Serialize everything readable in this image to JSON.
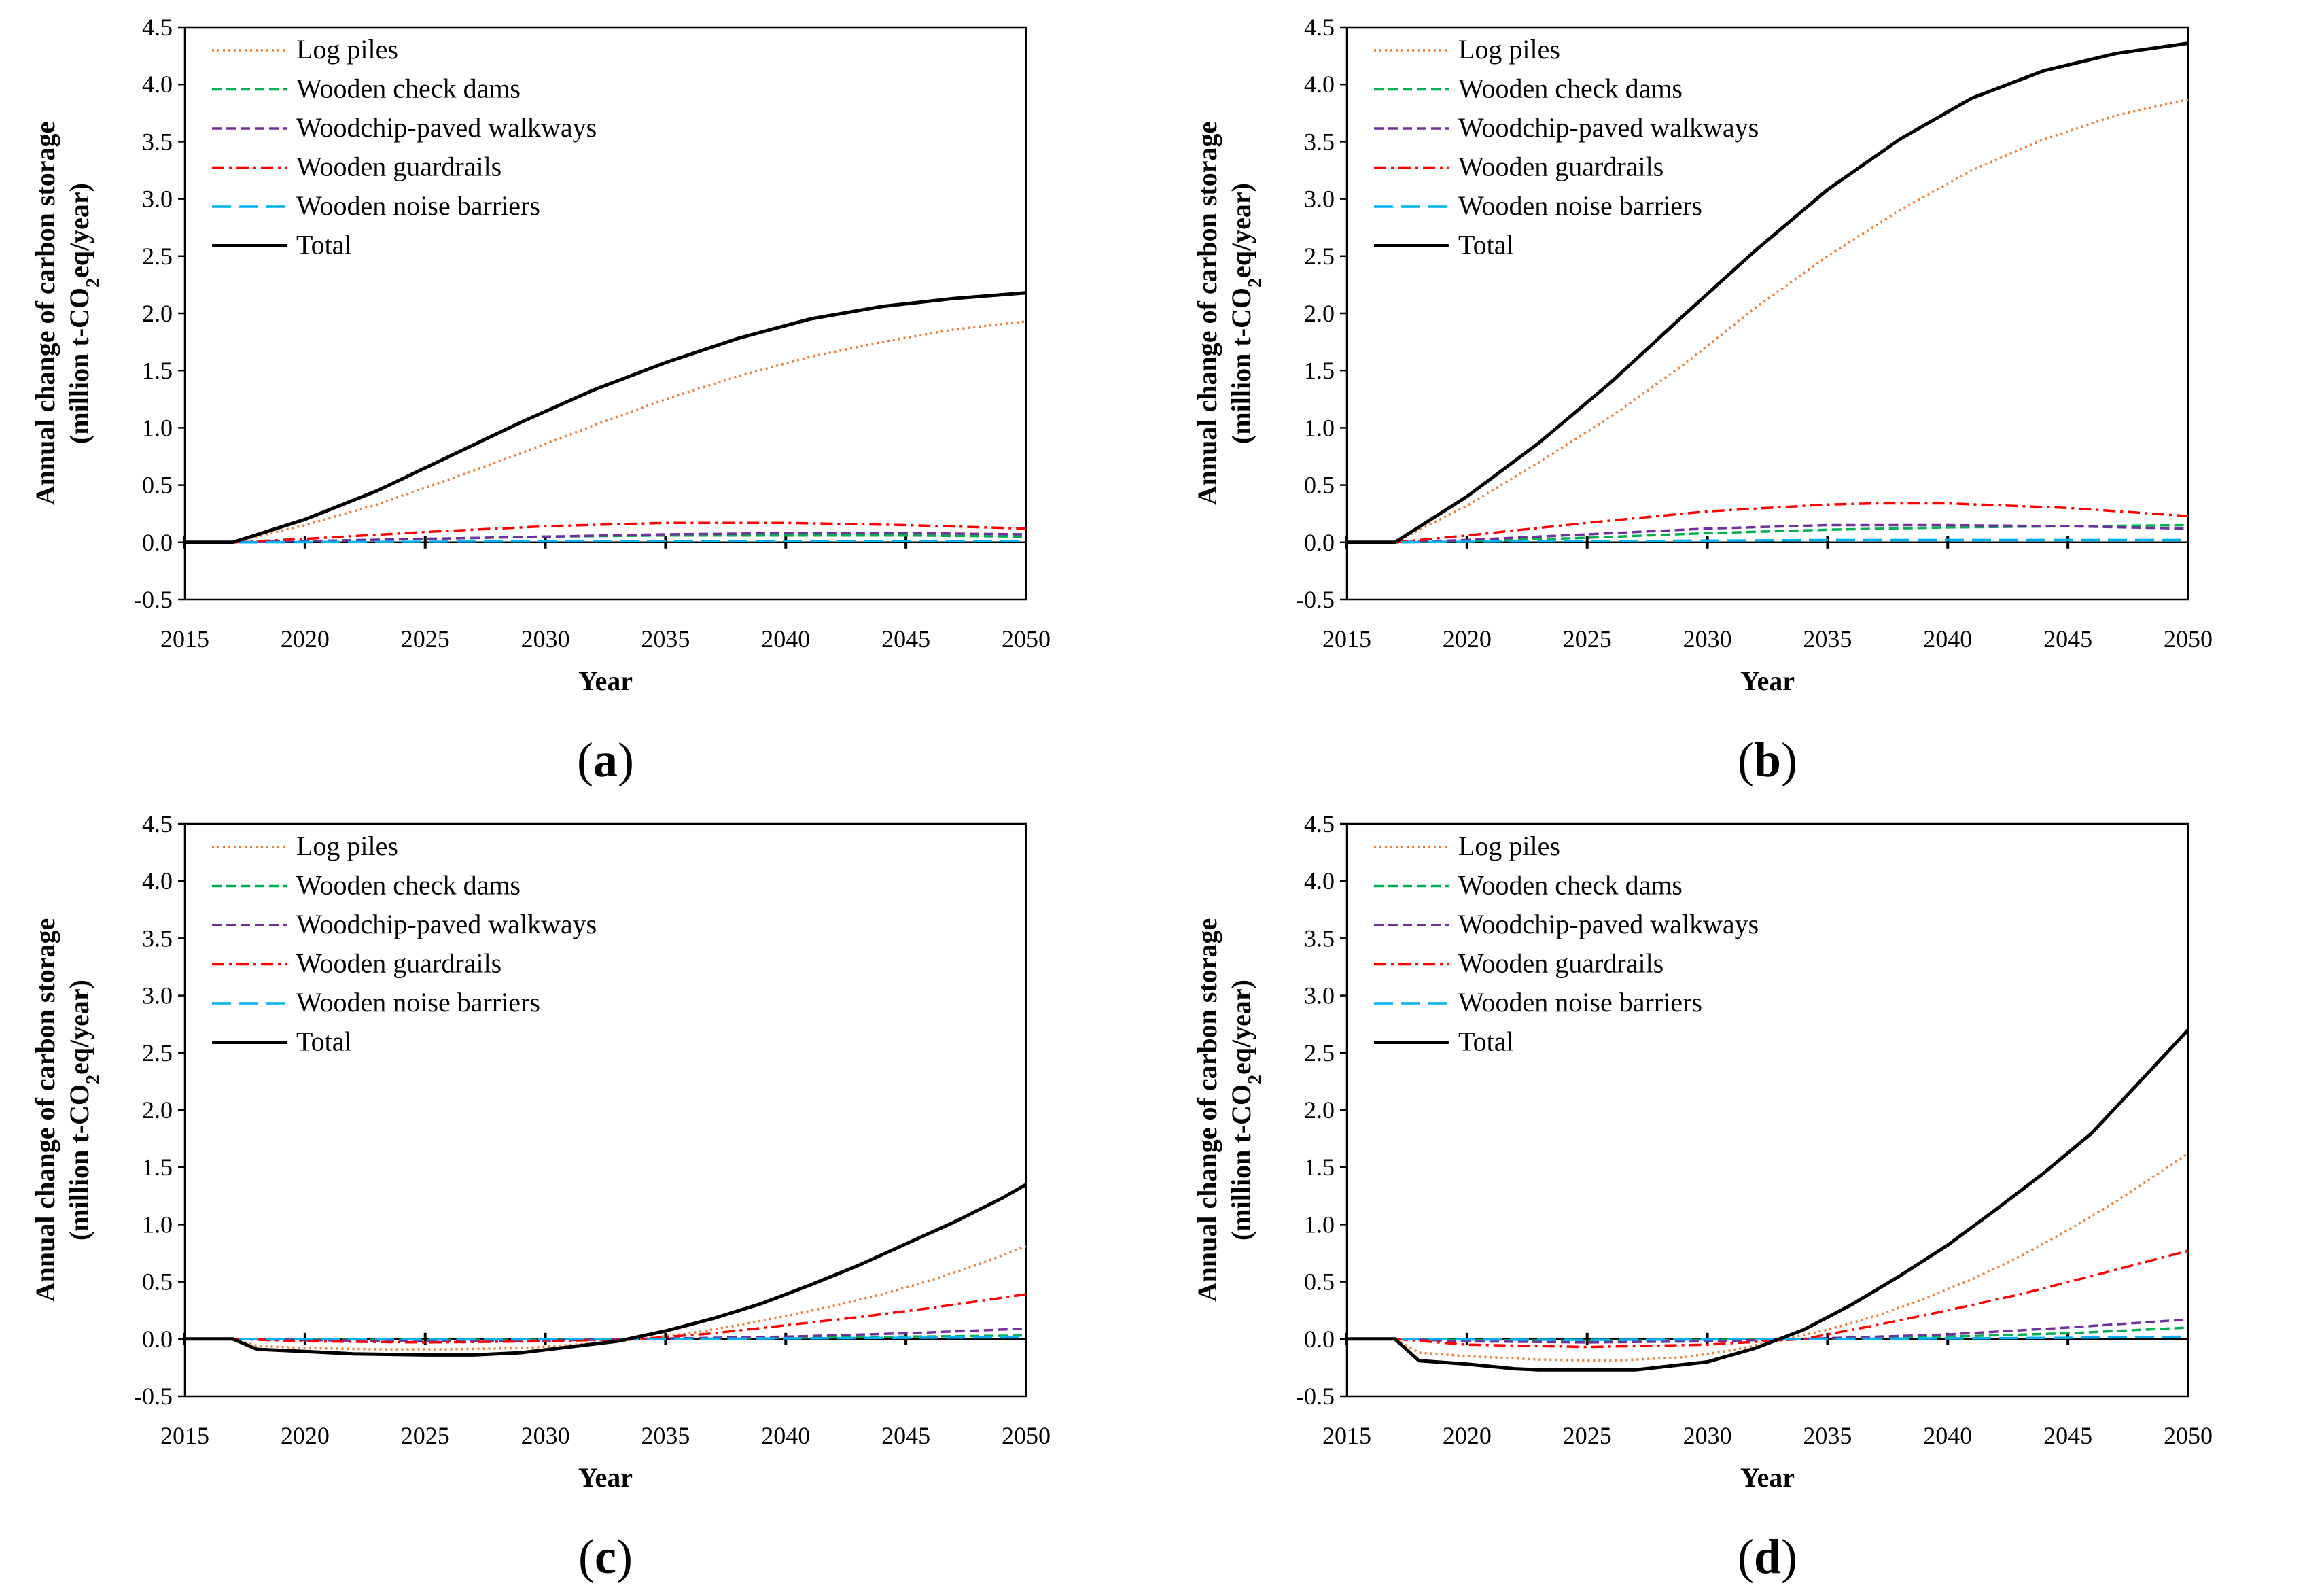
{
  "figure": {
    "description_labels": [
      "(a)",
      "(b)",
      "(c)",
      "(d)"
    ]
  },
  "chart_data": [
    {
      "type": "line",
      "label": "a",
      "xlabel": "Year",
      "ylabel_line1": "Annual change of carbon storage",
      "ylabel_line2_pre": "(million t-CO",
      "ylabel_line2_sub": "2",
      "ylabel_line2_post": "eq/year)",
      "xlim": [
        2015,
        2050
      ],
      "ylim": [
        -0.5,
        4.5
      ],
      "x_ticks": [
        2015,
        2020,
        2025,
        2030,
        2035,
        2040,
        2045,
        2050
      ],
      "y_ticks": [
        "-0.5",
        "0.0",
        "0.5",
        "1.0",
        "1.5",
        "2.0",
        "2.5",
        "3.0",
        "3.5",
        "4.0",
        "4.5"
      ],
      "legend": "top-left",
      "series": [
        {
          "name": "Log piles",
          "color": "#ED7D31",
          "style": "dotted",
          "x": [
            2015,
            2017,
            2020,
            2023,
            2026,
            2029,
            2032,
            2035,
            2038,
            2041,
            2044,
            2047,
            2050
          ],
          "y": [
            0,
            0,
            0.15,
            0.33,
            0.55,
            0.78,
            1.02,
            1.25,
            1.45,
            1.62,
            1.75,
            1.86,
            1.93
          ]
        },
        {
          "name": "Wooden check dams",
          "color": "#00B050",
          "style": "dashed",
          "x": [
            2015,
            2017,
            2020,
            2025,
            2030,
            2035,
            2040,
            2045,
            2050
          ],
          "y": [
            0,
            0,
            0.01,
            0.03,
            0.05,
            0.06,
            0.06,
            0.06,
            0.05
          ]
        },
        {
          "name": "Woodchip-paved walkways",
          "color": "#7030A0",
          "style": "dashed",
          "x": [
            2015,
            2017,
            2020,
            2025,
            2030,
            2035,
            2040,
            2045,
            2050
          ],
          "y": [
            0,
            0,
            0.01,
            0.03,
            0.05,
            0.07,
            0.08,
            0.08,
            0.07
          ]
        },
        {
          "name": "Wooden guardrails",
          "color": "#FF0000",
          "style": "dashdot",
          "x": [
            2015,
            2017,
            2020,
            2025,
            2030,
            2035,
            2040,
            2045,
            2050
          ],
          "y": [
            0,
            0,
            0.03,
            0.09,
            0.14,
            0.17,
            0.17,
            0.15,
            0.12
          ]
        },
        {
          "name": "Wooden noise barriers",
          "color": "#00B0F0",
          "style": "longdash",
          "x": [
            2015,
            2017,
            2020,
            2025,
            2030,
            2035,
            2040,
            2045,
            2050
          ],
          "y": [
            0,
            0,
            0.002,
            0.005,
            0.008,
            0.01,
            0.01,
            0.01,
            0.01
          ]
        },
        {
          "name": "Total",
          "color": "#000000",
          "style": "solid",
          "x": [
            2015,
            2017,
            2020,
            2023,
            2026,
            2029,
            2032,
            2035,
            2038,
            2041,
            2044,
            2047,
            2050
          ],
          "y": [
            0,
            0,
            0.2,
            0.45,
            0.75,
            1.05,
            1.33,
            1.57,
            1.78,
            1.95,
            2.06,
            2.13,
            2.18
          ]
        }
      ]
    },
    {
      "type": "line",
      "label": "b",
      "xlabel": "Year",
      "ylabel_line1": "Annual change of carbon storage",
      "ylabel_line2_pre": "(million t-CO",
      "ylabel_line2_sub": "2",
      "ylabel_line2_post": "eq/year)",
      "xlim": [
        2015,
        2050
      ],
      "ylim": [
        -0.5,
        4.5
      ],
      "x_ticks": [
        2015,
        2020,
        2025,
        2030,
        2035,
        2040,
        2045,
        2050
      ],
      "y_ticks": [
        "-0.5",
        "0.0",
        "0.5",
        "1.0",
        "1.5",
        "2.0",
        "2.5",
        "3.0",
        "3.5",
        "4.0",
        "4.5"
      ],
      "legend": "top-left",
      "series": [
        {
          "name": "Log piles",
          "color": "#ED7D31",
          "style": "dotted",
          "x": [
            2015,
            2017,
            2020,
            2023,
            2026,
            2029,
            2032,
            2035,
            2038,
            2041,
            2044,
            2047,
            2050
          ],
          "y": [
            0,
            0,
            0.32,
            0.7,
            1.1,
            1.55,
            2.05,
            2.5,
            2.9,
            3.25,
            3.52,
            3.73,
            3.87
          ]
        },
        {
          "name": "Wooden check dams",
          "color": "#00B050",
          "style": "dashed",
          "x": [
            2015,
            2017,
            2020,
            2025,
            2030,
            2035,
            2040,
            2045,
            2050
          ],
          "y": [
            0,
            0,
            0.01,
            0.04,
            0.08,
            0.11,
            0.13,
            0.14,
            0.15
          ]
        },
        {
          "name": "Woodchip-paved walkways",
          "color": "#7030A0",
          "style": "dashed",
          "x": [
            2015,
            2017,
            2020,
            2025,
            2030,
            2035,
            2040,
            2045,
            2050
          ],
          "y": [
            0,
            0,
            0.02,
            0.07,
            0.12,
            0.15,
            0.15,
            0.14,
            0.12
          ]
        },
        {
          "name": "Wooden guardrails",
          "color": "#FF0000",
          "style": "dashdot",
          "x": [
            2015,
            2017,
            2020,
            2025,
            2030,
            2035,
            2037,
            2040,
            2045,
            2050
          ],
          "y": [
            0,
            0,
            0.06,
            0.17,
            0.27,
            0.33,
            0.34,
            0.34,
            0.3,
            0.23
          ]
        },
        {
          "name": "Wooden noise barriers",
          "color": "#00B0F0",
          "style": "longdash",
          "x": [
            2015,
            2017,
            2020,
            2025,
            2030,
            2035,
            2040,
            2045,
            2050
          ],
          "y": [
            0,
            0,
            0.005,
            0.01,
            0.015,
            0.02,
            0.02,
            0.02,
            0.02
          ]
        },
        {
          "name": "Total",
          "color": "#000000",
          "style": "solid",
          "x": [
            2015,
            2017,
            2020,
            2023,
            2026,
            2029,
            2032,
            2035,
            2038,
            2041,
            2044,
            2047,
            2050
          ],
          "y": [
            0,
            0,
            0.4,
            0.87,
            1.4,
            1.98,
            2.55,
            3.08,
            3.52,
            3.88,
            4.12,
            4.27,
            4.36
          ]
        }
      ]
    },
    {
      "type": "line",
      "label": "c",
      "xlabel": "Year",
      "ylabel_line1": "Annual change of carbon storage",
      "ylabel_line2_pre": "(million t-CO",
      "ylabel_line2_sub": "2",
      "ylabel_line2_post": "eq/year)",
      "xlim": [
        2015,
        2050
      ],
      "ylim": [
        -0.5,
        4.5
      ],
      "x_ticks": [
        2015,
        2020,
        2025,
        2030,
        2035,
        2040,
        2045,
        2050
      ],
      "y_ticks": [
        "-0.5",
        "0.0",
        "0.5",
        "1.0",
        "1.5",
        "2.0",
        "2.5",
        "3.0",
        "3.5",
        "4.0",
        "4.5"
      ],
      "legend": "top-left",
      "series": [
        {
          "name": "Log piles",
          "color": "#ED7D31",
          "style": "dotted",
          "x": [
            2015,
            2017,
            2018,
            2020,
            2023,
            2026,
            2029,
            2032,
            2034,
            2036,
            2038,
            2040,
            2042,
            2044,
            2046,
            2048,
            2050
          ],
          "y": [
            0,
            0,
            -0.06,
            -0.08,
            -0.09,
            -0.09,
            -0.08,
            -0.04,
            0.0,
            0.05,
            0.12,
            0.2,
            0.29,
            0.39,
            0.51,
            0.65,
            0.81
          ]
        },
        {
          "name": "Wooden check dams",
          "color": "#00B050",
          "style": "dashed",
          "x": [
            2015,
            2017,
            2020,
            2025,
            2030,
            2034,
            2040,
            2045,
            2050
          ],
          "y": [
            0,
            0,
            -0.005,
            -0.01,
            -0.008,
            0.0,
            0.01,
            0.02,
            0.03
          ]
        },
        {
          "name": "Woodchip-paved walkways",
          "color": "#7030A0",
          "style": "dashed",
          "x": [
            2015,
            2017,
            2020,
            2025,
            2030,
            2034,
            2040,
            2045,
            2050
          ],
          "y": [
            0,
            0,
            -0.01,
            -0.02,
            -0.015,
            0.0,
            0.02,
            0.05,
            0.09
          ]
        },
        {
          "name": "Wooden guardrails",
          "color": "#FF0000",
          "style": "dashdot",
          "x": [
            2015,
            2017,
            2020,
            2025,
            2030,
            2034,
            2037,
            2040,
            2043,
            2046,
            2050
          ],
          "y": [
            0,
            0,
            -0.02,
            -0.03,
            -0.02,
            0.0,
            0.05,
            0.12,
            0.19,
            0.27,
            0.39
          ]
        },
        {
          "name": "Wooden noise barriers",
          "color": "#00B0F0",
          "style": "longdash",
          "x": [
            2015,
            2017,
            2020,
            2025,
            2030,
            2034,
            2040,
            2045,
            2050
          ],
          "y": [
            0,
            0,
            -0.003,
            -0.005,
            -0.004,
            0.0,
            0.005,
            0.01,
            0.015
          ]
        },
        {
          "name": "Total",
          "color": "#000000",
          "style": "solid",
          "x": [
            2015,
            2017,
            2018,
            2020,
            2022,
            2025,
            2027,
            2029,
            2031,
            2033,
            2035,
            2037,
            2039,
            2041,
            2043,
            2045,
            2047,
            2049,
            2050
          ],
          "y": [
            0,
            0,
            -0.09,
            -0.11,
            -0.13,
            -0.14,
            -0.14,
            -0.12,
            -0.07,
            -0.02,
            0.07,
            0.18,
            0.31,
            0.47,
            0.64,
            0.83,
            1.02,
            1.23,
            1.35
          ]
        }
      ]
    },
    {
      "type": "line",
      "label": "d",
      "xlabel": "Year",
      "ylabel_line1": "Annual change of carbon storage",
      "ylabel_line2_pre": "(million t-CO",
      "ylabel_line2_sub": "2",
      "ylabel_line2_post": "eq/year)",
      "xlim": [
        2015,
        2050
      ],
      "ylim": [
        -0.5,
        4.5
      ],
      "x_ticks": [
        2015,
        2020,
        2025,
        2030,
        2035,
        2040,
        2045,
        2050
      ],
      "y_ticks": [
        "-0.5",
        "0.0",
        "0.5",
        "1.0",
        "1.5",
        "2.0",
        "2.5",
        "3.0",
        "3.5",
        "4.0",
        "4.5"
      ],
      "legend": "top-left",
      "series": [
        {
          "name": "Log piles",
          "color": "#ED7D31",
          "style": "dotted",
          "x": [
            2015,
            2017,
            2018,
            2020,
            2023,
            2026,
            2029,
            2031,
            2033,
            2035,
            2037,
            2039,
            2041,
            2043,
            2045,
            2047,
            2050
          ],
          "y": [
            0,
            0,
            -0.12,
            -0.15,
            -0.18,
            -0.19,
            -0.16,
            -0.1,
            -0.01,
            0.08,
            0.2,
            0.35,
            0.52,
            0.72,
            0.95,
            1.2,
            1.62
          ]
        },
        {
          "name": "Wooden check dams",
          "color": "#00B050",
          "style": "dashed",
          "x": [
            2015,
            2017,
            2020,
            2025,
            2030,
            2034,
            2040,
            2045,
            2050
          ],
          "y": [
            0,
            0,
            -0.01,
            -0.015,
            -0.01,
            0.0,
            0.02,
            0.05,
            0.1
          ]
        },
        {
          "name": "Woodchip-paved walkways",
          "color": "#7030A0",
          "style": "dashed",
          "x": [
            2015,
            2017,
            2020,
            2025,
            2030,
            2034,
            2040,
            2045,
            2050
          ],
          "y": [
            0,
            0,
            -0.02,
            -0.03,
            -0.02,
            0.0,
            0.04,
            0.1,
            0.17
          ]
        },
        {
          "name": "Wooden guardrails",
          "color": "#FF0000",
          "style": "dashdot",
          "x": [
            2015,
            2017,
            2020,
            2025,
            2030,
            2034,
            2037,
            2040,
            2043,
            2046,
            2050
          ],
          "y": [
            0,
            0,
            -0.05,
            -0.07,
            -0.05,
            0.0,
            0.12,
            0.25,
            0.39,
            0.55,
            0.77
          ]
        },
        {
          "name": "Wooden noise barriers",
          "color": "#00B0F0",
          "style": "longdash",
          "x": [
            2015,
            2017,
            2020,
            2025,
            2030,
            2034,
            2040,
            2045,
            2050
          ],
          "y": [
            0,
            0,
            -0.005,
            -0.008,
            -0.005,
            0.0,
            0.005,
            0.01,
            0.02
          ]
        },
        {
          "name": "Total",
          "color": "#000000",
          "style": "solid",
          "x": [
            2015,
            2017,
            2018,
            2020,
            2022,
            2023,
            2027,
            2030,
            2032,
            2034,
            2036,
            2038,
            2040,
            2042,
            2044,
            2046,
            2048,
            2050
          ],
          "y": [
            0,
            0,
            -0.19,
            -0.22,
            -0.26,
            -0.27,
            -0.27,
            -0.2,
            -0.08,
            0.08,
            0.3,
            0.55,
            0.82,
            1.13,
            1.45,
            1.8,
            2.25,
            2.7
          ]
        }
      ]
    }
  ]
}
